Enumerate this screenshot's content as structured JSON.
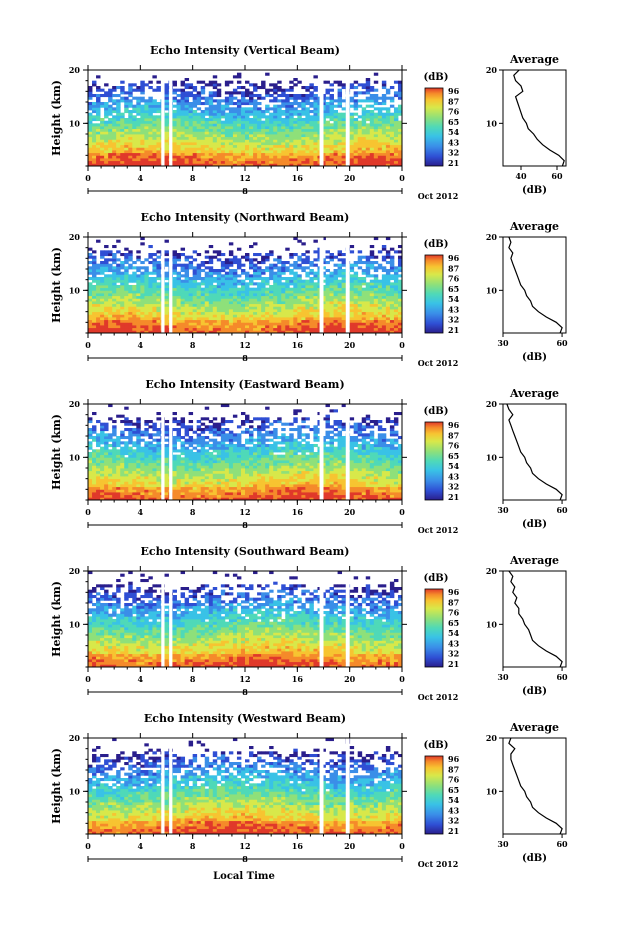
{
  "chart_data": {
    "type": "heatmap",
    "xlabel": "Local Time",
    "date_label": "Oct 2012",
    "day_marker": "8",
    "ylabel": "Height (km)",
    "x_ticks": [
      "0",
      "4",
      "8",
      "12",
      "16",
      "20",
      "0"
    ],
    "xlim": [
      0,
      24
    ],
    "ylim": [
      2,
      20
    ],
    "y_ticks": [
      "10",
      "20"
    ],
    "colorbar_unit": "(dB)",
    "gap_bands_hours": [
      [
        5.6,
        5.85
      ],
      [
        6.2,
        6.45
      ],
      [
        17.7,
        18.0
      ],
      [
        19.7,
        20.0
      ]
    ],
    "colormap": [
      "#2a1e8c",
      "#2f4fd4",
      "#3a8ee8",
      "#39c2e6",
      "#4fd9b8",
      "#8ee07a",
      "#d8e84a",
      "#f7c431",
      "#f58a2a",
      "#e0392a"
    ],
    "panels": [
      {
        "title": "Echo Intensity (Vertical Beam)",
        "colorbar_ticks": [
          "96",
          "87",
          "76",
          "65",
          "54",
          "43",
          "32",
          "21"
        ],
        "average": {
          "title": "Average",
          "xlabel": "(dB)",
          "x_ticks": [
            "40",
            "60"
          ],
          "xlim": [
            30,
            65
          ],
          "height_km": [
            2,
            3,
            4,
            5,
            6,
            7,
            8,
            9,
            10,
            11,
            12,
            13,
            14,
            15,
            16,
            17,
            18,
            19,
            20
          ],
          "db": [
            63,
            64,
            61,
            56,
            52,
            49,
            47,
            44,
            43,
            41,
            40,
            39,
            38,
            37,
            41,
            40,
            37,
            36,
            39
          ]
        }
      },
      {
        "title": "Echo Intensity (Northward Beam)",
        "colorbar_ticks": [
          "96",
          "87",
          "76",
          "65",
          "54",
          "43",
          "32",
          "21"
        ],
        "average": {
          "title": "Average",
          "xlabel": "(dB)",
          "x_ticks": [
            "30",
            "60"
          ],
          "xlim": [
            30,
            62
          ],
          "height_km": [
            2,
            3,
            4,
            5,
            6,
            7,
            8,
            9,
            10,
            11,
            12,
            13,
            14,
            15,
            16,
            17,
            18,
            19,
            20
          ],
          "db": [
            59,
            60,
            57,
            52,
            48,
            45,
            44,
            42,
            41,
            39,
            38,
            37,
            36,
            35,
            34,
            35,
            33,
            34,
            33
          ]
        }
      },
      {
        "title": "Echo Intensity (Eastward Beam)",
        "colorbar_ticks": [
          "96",
          "87",
          "76",
          "65",
          "54",
          "43",
          "32",
          "21"
        ],
        "average": {
          "title": "Average",
          "xlabel": "(dB)",
          "x_ticks": [
            "30",
            "60"
          ],
          "xlim": [
            30,
            62
          ],
          "height_km": [
            2,
            3,
            4,
            5,
            6,
            7,
            8,
            9,
            10,
            11,
            12,
            13,
            14,
            15,
            16,
            17,
            18,
            19,
            20
          ],
          "db": [
            59,
            60,
            57,
            52,
            48,
            45,
            44,
            42,
            41,
            39,
            38,
            37,
            36,
            35,
            34,
            33,
            35,
            33,
            32
          ]
        }
      },
      {
        "title": "Echo Intensity (Southward Beam)",
        "colorbar_ticks": [
          "96",
          "87",
          "76",
          "65",
          "54",
          "43",
          "32",
          "21"
        ],
        "average": {
          "title": "Average",
          "xlabel": "(dB)",
          "x_ticks": [
            "30",
            "60"
          ],
          "xlim": [
            30,
            62
          ],
          "height_km": [
            2,
            3,
            4,
            5,
            6,
            7,
            8,
            9,
            10,
            11,
            12,
            13,
            14,
            15,
            16,
            17,
            18,
            19,
            20
          ],
          "db": [
            59,
            60,
            57,
            52,
            48,
            45,
            44,
            43,
            41,
            40,
            38,
            38,
            36,
            37,
            35,
            36,
            34,
            35,
            33
          ]
        }
      },
      {
        "title": "Echo Intensity (Westward Beam)",
        "colorbar_ticks": [
          "96",
          "87",
          "76",
          "65",
          "54",
          "43",
          "32",
          "21"
        ],
        "average": {
          "title": "Average",
          "xlabel": "(dB)",
          "x_ticks": [
            "30",
            "60"
          ],
          "xlim": [
            30,
            62
          ],
          "height_km": [
            2,
            3,
            4,
            5,
            6,
            7,
            8,
            9,
            10,
            11,
            12,
            13,
            14,
            15,
            16,
            17,
            18,
            19,
            20
          ],
          "db": [
            59,
            60,
            57,
            52,
            48,
            45,
            44,
            42,
            41,
            39,
            38,
            37,
            36,
            35,
            34,
            34,
            36,
            33,
            34
          ]
        }
      }
    ]
  }
}
